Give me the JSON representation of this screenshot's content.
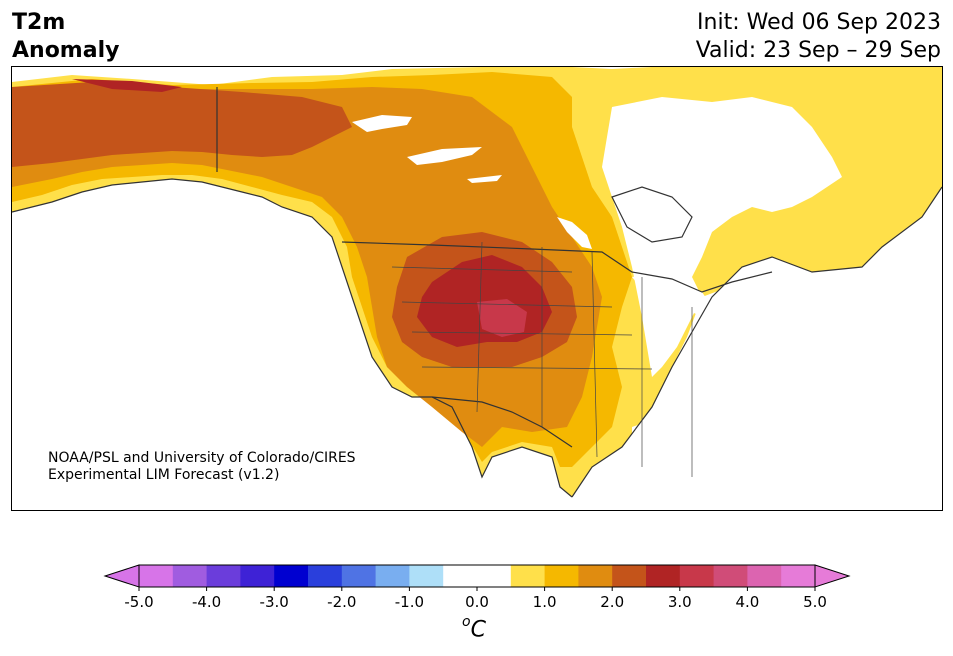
{
  "title": {
    "left_line1": "T2m",
    "left_line2": "Anomaly",
    "right_line1": "Init: Wed 06 Sep 2023",
    "right_line2": "Valid: 23 Sep – 29 Sep"
  },
  "credit": {
    "line1": "NOAA/PSL and University of Colorado/CIRES",
    "line2": "Experimental LIM Forecast (v1.2)"
  },
  "colorbar": {
    "unit_base": "C",
    "unit_sup": "o",
    "ticks": [
      "-5.0",
      "-4.0",
      "-3.0",
      "-2.0",
      "-1.0",
      "0.0",
      "1.0",
      "2.0",
      "3.0",
      "4.0",
      "5.0"
    ],
    "colors": [
      "#d774e8",
      "#a05ce0",
      "#6b3ddb",
      "#3e22d6",
      "#0000d0",
      "#2a3fdc",
      "#4f73e4",
      "#79aef0",
      "#aedff8",
      "#ffffff",
      "#ffffff",
      "#ffe04a",
      "#f5b800",
      "#e08c10",
      "#c4541a",
      "#b02424",
      "#c8384a",
      "#d04c78",
      "#dc64b0",
      "#e67bd8"
    ],
    "extend_low": "#d774e8",
    "extend_high": "#e67bd8"
  },
  "map": {
    "palette": {
      "a1": "#ffe04a",
      "a2": "#f5b800",
      "a3": "#e08c10",
      "a4": "#c4541a",
      "a5": "#b02424",
      "a6": "#c8384a",
      "land_neutral": "#ffffff",
      "border": "#333333"
    }
  }
}
